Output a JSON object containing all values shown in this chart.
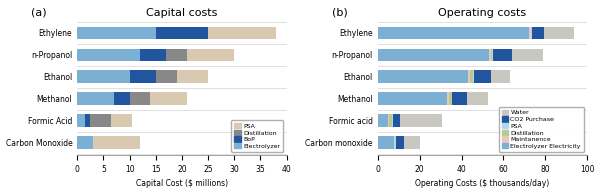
{
  "capital": {
    "categories": [
      "Carbon Monoxide",
      "Formic Acid",
      "Methanol",
      "Ethanol",
      "n-Propanol",
      "Ethylene"
    ],
    "segments": {
      "Electrolyzer": [
        3.0,
        1.5,
        7.0,
        10.0,
        12.0,
        15.0
      ],
      "BoP": [
        0.0,
        1.0,
        3.0,
        5.0,
        5.0,
        10.0
      ],
      "Distillation": [
        0.0,
        4.0,
        4.0,
        4.0,
        4.0,
        0.0
      ],
      "PSA": [
        9.0,
        4.0,
        7.0,
        6.0,
        9.0,
        13.0
      ]
    },
    "colors": {
      "Electrolyzer": "#7bafd4",
      "BoP": "#2155a0",
      "Distillation": "#888888",
      "PSA": "#d9c9b0"
    },
    "legend_order": [
      "PSA",
      "Distillation",
      "BoP",
      "Electrolyzer"
    ],
    "xlabel": "Capital Cost ($ millions)",
    "title": "Capital costs",
    "xlim": [
      0,
      40
    ]
  },
  "operating": {
    "categories": [
      "Carbon monoxide",
      "Formic acid",
      "Methanol",
      "Ethanol",
      "n-Propanol",
      "Ethylene"
    ],
    "segments": {
      "Electrolyzer Electricity": [
        8.0,
        5.0,
        33.0,
        43.0,
        53.0,
        72.0
      ],
      "Maintanence": [
        0.4,
        0.5,
        0.8,
        1.0,
        1.0,
        1.0
      ],
      "Distillation": [
        0.0,
        1.5,
        1.5,
        1.5,
        0.5,
        0.0
      ],
      "PSA": [
        0.3,
        0.3,
        0.3,
        0.5,
        0.5,
        0.5
      ],
      "CO2 Purchase": [
        4.0,
        3.5,
        7.0,
        8.0,
        9.0,
        6.0
      ],
      "Water": [
        7.5,
        20.0,
        10.0,
        9.0,
        15.0,
        14.0
      ]
    },
    "colors": {
      "Electrolyzer Electricity": "#7bafd4",
      "Maintanence": "#e8c8b8",
      "Distillation": "#b8c890",
      "PSA": "#a8dce8",
      "CO2 Purchase": "#2155a0",
      "Water": "#c8c8c0"
    },
    "legend_order": [
      "Water",
      "CO2 Purchase",
      "PSA",
      "Distillation",
      "Maintanence",
      "Electrolyzer Electricity"
    ],
    "xlabel": "Operating Costs ($ thousands/day)",
    "title": "Operating costs",
    "xlim": [
      0,
      100
    ]
  }
}
